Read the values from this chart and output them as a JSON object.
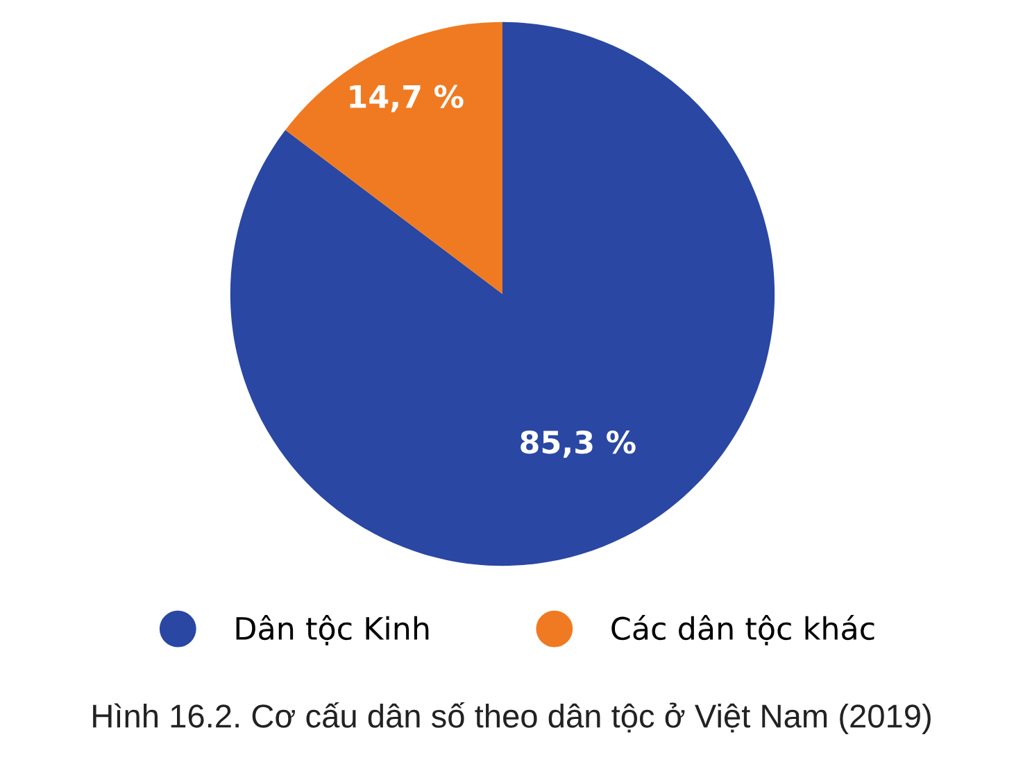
{
  "chart_data": {
    "type": "pie",
    "title": "Hình 16.2. Cơ cấu dân số theo dân tộc ở Việt Nam (2019)",
    "categories": [
      "Dân tộc Kinh",
      "Các dân tộc khác"
    ],
    "values": [
      85.3,
      14.7
    ],
    "colors": [
      "#2a47a3",
      "#f07a21"
    ],
    "value_labels": [
      "85,3 %",
      "14,7 %"
    ],
    "legend": "bottom"
  }
}
